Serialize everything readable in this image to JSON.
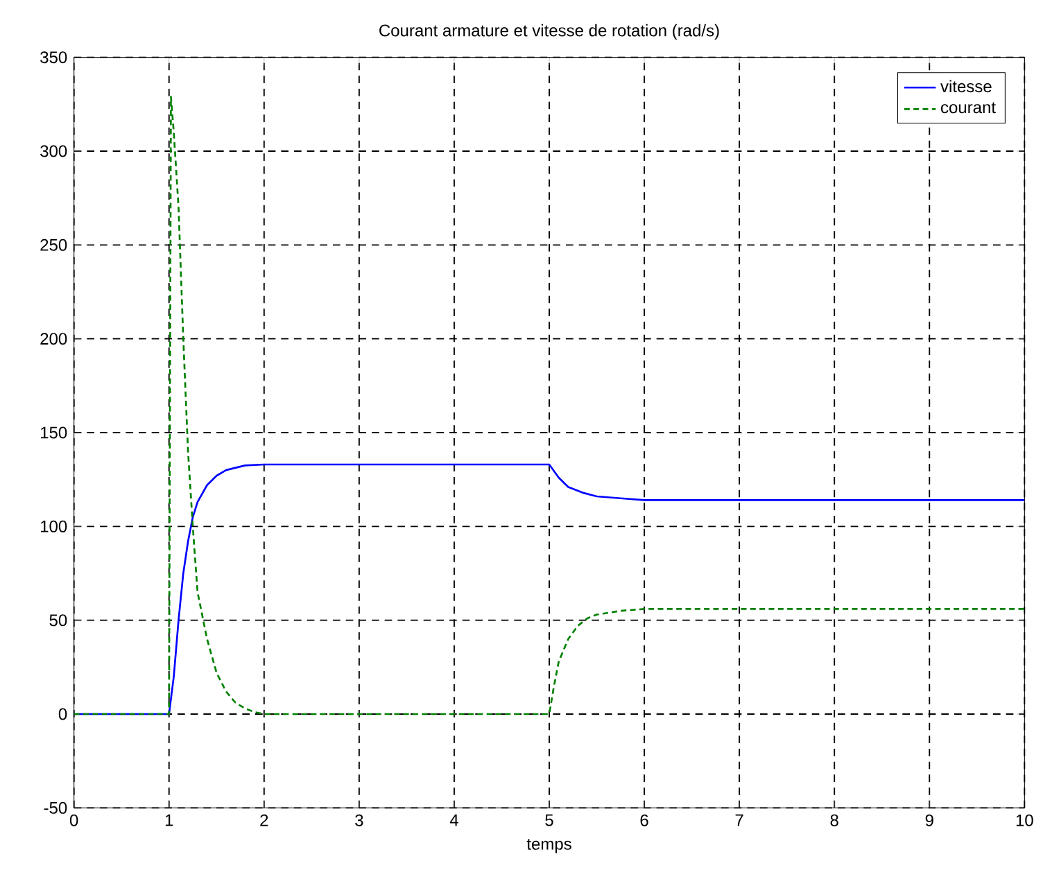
{
  "chart_data": {
    "type": "line",
    "title": "Courant armature et vitesse de rotation (rad/s)",
    "xlabel": "temps",
    "series": [
      {
        "name": "vitesse",
        "color": "#0000ff",
        "line_style": "solid",
        "x": [
          0,
          1,
          1.05,
          1.1,
          1.15,
          1.2,
          1.25,
          1.3,
          1.4,
          1.5,
          1.6,
          1.8,
          2,
          5,
          5.1,
          5.2,
          5.35,
          5.5,
          5.75,
          6,
          10
        ],
        "values": [
          0,
          0,
          20,
          50,
          75,
          92,
          105,
          113,
          122,
          127,
          130,
          132.5,
          133,
          133,
          126,
          121,
          118,
          116,
          115,
          114,
          114
        ]
      },
      {
        "name": "courant",
        "color": "#008000",
        "line_style": "dashed",
        "x": [
          0,
          1,
          1.02,
          1.05,
          1.1,
          1.15,
          1.2,
          1.25,
          1.3,
          1.4,
          1.5,
          1.6,
          1.7,
          1.8,
          1.9,
          2,
          5,
          5.05,
          5.1,
          5.2,
          5.3,
          5.4,
          5.5,
          5.75,
          6,
          10
        ],
        "values": [
          0,
          0,
          329,
          310,
          270,
          200,
          140,
          100,
          65,
          40,
          22,
          12,
          6,
          3,
          1,
          0,
          0,
          15,
          28,
          40,
          47,
          51,
          53,
          55,
          56,
          56
        ]
      }
    ],
    "xlim": [
      0,
      10
    ],
    "xticks": [
      0,
      1,
      2,
      3,
      4,
      5,
      6,
      7,
      8,
      9,
      10
    ],
    "ylim": [
      -50,
      350
    ],
    "yticks": [
      -50,
      0,
      50,
      100,
      150,
      200,
      250,
      300,
      350
    ],
    "grid": true,
    "legend": "top right"
  }
}
